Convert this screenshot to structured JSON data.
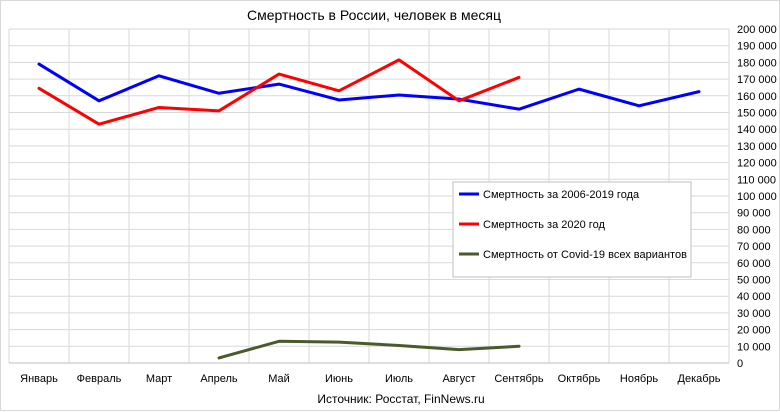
{
  "chart_data": {
    "type": "line",
    "title": "Смертность в России, человек в месяц",
    "source": "Источник: Росстат, FinNews.ru",
    "categories": [
      "Январь",
      "Февраль",
      "Март",
      "Апрель",
      "Май",
      "Июнь",
      "Июль",
      "Август",
      "Сентябрь",
      "Октябрь",
      "Ноябрь",
      "Декабрь"
    ],
    "ylim": [
      0,
      200000
    ],
    "ytick_step": 10000,
    "ytick_labels": [
      "0",
      "10 000",
      "20 000",
      "30 000",
      "40 000",
      "50 000",
      "60 000",
      "70 000",
      "80 000",
      "90 000",
      "100 000",
      "110 000",
      "120 000",
      "130 000",
      "140 000",
      "150 000",
      "160 000",
      "170 000",
      "180 000",
      "190 000",
      "200 000"
    ],
    "grid": true,
    "legend_position": "right",
    "series": [
      {
        "name": "Смертность за 2006-2019  года",
        "color": "#0000ff",
        "values": [
          179000,
          157000,
          172000,
          161500,
          167000,
          157500,
          160500,
          158000,
          152000,
          164000,
          154000,
          162500
        ]
      },
      {
        "name": "Смертность за 2020  год",
        "color": "#ff0000",
        "values": [
          164500,
          143000,
          153000,
          151000,
          173000,
          163000,
          181500,
          157000,
          171000,
          null,
          null,
          null
        ]
      },
      {
        "name": "Смертность от Covid-19 всех вариантов",
        "color": "#4a5a2a",
        "values": [
          null,
          null,
          null,
          3000,
          13000,
          12500,
          10500,
          8000,
          10000,
          null,
          null,
          null
        ]
      }
    ]
  }
}
